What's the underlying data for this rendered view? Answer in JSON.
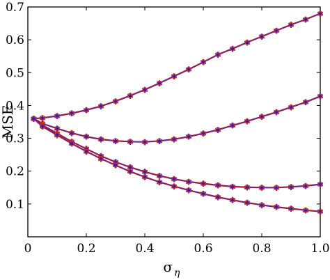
{
  "chart_data": {
    "type": "line",
    "title": "",
    "xlabel": "σ",
    "xlabel_subscript": "η",
    "ylabel": "MSE",
    "xlim": [
      0,
      1.0
    ],
    "ylim": [
      0,
      0.7
    ],
    "xticks": [
      "0",
      "0.2",
      "0.4",
      "0.6",
      "0.8",
      "1.0"
    ],
    "xtick_values": [
      0,
      0.2,
      0.4,
      0.6,
      0.8,
      1.0
    ],
    "yticks": [
      "0.1",
      "0.2",
      "0.3",
      "0.4",
      "0.5",
      "0.6",
      "0.7"
    ],
    "ytick_values": [
      0.1,
      0.2,
      0.3,
      0.4,
      0.5,
      0.6,
      0.7
    ],
    "grid": false,
    "colors": {
      "line_a": "#4b1a8c",
      "line_b": "#d42020",
      "marker_star": "#3a1fa0",
      "marker_circle": "#e03020"
    },
    "x": [
      0.02,
      0.05,
      0.1,
      0.15,
      0.2,
      0.25,
      0.3,
      0.35,
      0.4,
      0.45,
      0.5,
      0.55,
      0.6,
      0.65,
      0.7,
      0.75,
      0.8,
      0.85,
      0.9,
      0.95,
      1.0
    ],
    "series": [
      {
        "values": [
          0.36,
          0.362,
          0.368,
          0.376,
          0.386,
          0.398,
          0.413,
          0.43,
          0.448,
          0.468,
          0.489,
          0.51,
          0.532,
          0.555,
          0.573,
          0.592,
          0.61,
          0.628,
          0.646,
          0.662,
          0.68
        ]
      },
      {
        "values": [
          0.36,
          0.345,
          0.33,
          0.316,
          0.305,
          0.297,
          0.292,
          0.29,
          0.289,
          0.292,
          0.297,
          0.305,
          0.315,
          0.326,
          0.339,
          0.352,
          0.366,
          0.38,
          0.395,
          0.41,
          0.428
        ]
      },
      {
        "values": [
          0.36,
          0.34,
          0.315,
          0.29,
          0.268,
          0.246,
          0.228,
          0.212,
          0.198,
          0.186,
          0.176,
          0.168,
          0.162,
          0.157,
          0.153,
          0.151,
          0.15,
          0.15,
          0.152,
          0.155,
          0.16
        ]
      },
      {
        "values": [
          0.36,
          0.336,
          0.31,
          0.284,
          0.26,
          0.238,
          0.218,
          0.199,
          0.182,
          0.167,
          0.154,
          0.142,
          0.131,
          0.121,
          0.112,
          0.104,
          0.097,
          0.091,
          0.086,
          0.081,
          0.077
        ]
      }
    ]
  }
}
